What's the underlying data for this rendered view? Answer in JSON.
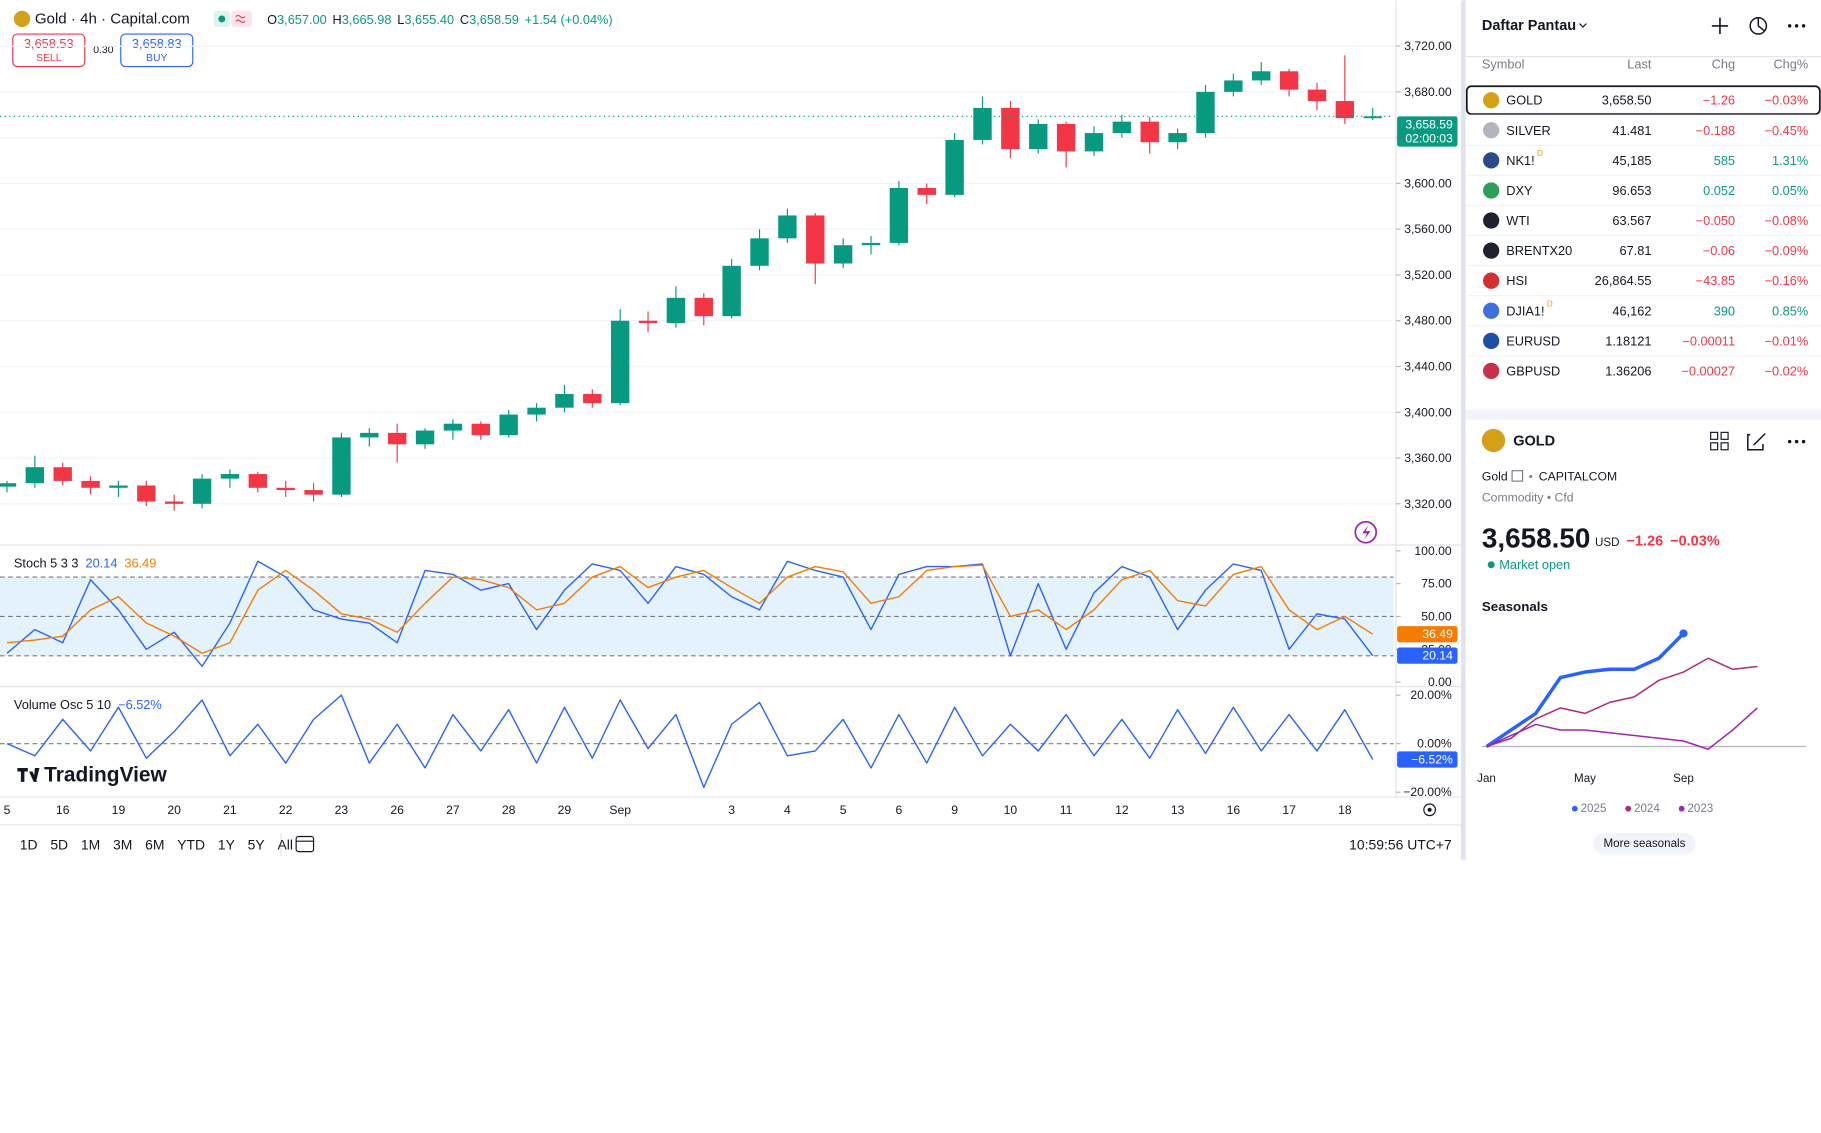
{
  "header": {
    "ohlc": [
      {
        "key": "O",
        "value": "3,657.00"
      },
      {
        "key": "H",
        "value": "3,665.98"
      },
      {
        "key": "L",
        "value": "3,655.40"
      },
      {
        "key": "C",
        "value": "3,658.59"
      }
    ],
    "change": "+1.54 (+0.04%)",
    "sell": {
      "price": "3,658.53",
      "label": "SELL"
    },
    "spread": "0.30",
    "buy": {
      "price": "3,658.83",
      "label": "BUY"
    }
  },
  "chart_data": [
    {
      "type": "candlestick",
      "title": "Gold · 4h · Capital.com",
      "categories": [
        "5",
        null,
        "16",
        null,
        "19",
        null,
        "20",
        null,
        "21",
        null,
        "22",
        null,
        "23",
        null,
        "26",
        null,
        "27",
        null,
        "28",
        null,
        "29",
        null,
        "Sep",
        null,
        null,
        null,
        "3",
        null,
        "4",
        null,
        "5",
        null,
        "6",
        null,
        "9",
        null,
        "10",
        null,
        "11",
        null,
        "12",
        null,
        "13",
        null,
        "16",
        null,
        "17",
        null,
        "18",
        null
      ],
      "ohlc": [
        [
          3335,
          3340,
          3330,
          3338
        ],
        [
          3338,
          3362,
          3334,
          3352
        ],
        [
          3352,
          3356,
          3336,
          3340
        ],
        [
          3340,
          3344,
          3328,
          3334
        ],
        [
          3334,
          3340,
          3326,
          3336
        ],
        [
          3336,
          3340,
          3318,
          3322
        ],
        [
          3322,
          3328,
          3314,
          3320
        ],
        [
          3320,
          3346,
          3316,
          3342
        ],
        [
          3342,
          3350,
          3334,
          3346
        ],
        [
          3346,
          3348,
          3330,
          3334
        ],
        [
          3334,
          3340,
          3326,
          3332
        ],
        [
          3332,
          3338,
          3322,
          3328
        ],
        [
          3328,
          3382,
          3326,
          3378
        ],
        [
          3378,
          3386,
          3370,
          3382
        ],
        [
          3382,
          3390,
          3356,
          3372
        ],
        [
          3372,
          3386,
          3368,
          3384
        ],
        [
          3384,
          3394,
          3376,
          3390
        ],
        [
          3390,
          3392,
          3376,
          3380
        ],
        [
          3380,
          3402,
          3378,
          3398
        ],
        [
          3398,
          3408,
          3392,
          3404
        ],
        [
          3404,
          3424,
          3400,
          3416
        ],
        [
          3416,
          3420,
          3404,
          3408
        ],
        [
          3408,
          3490,
          3406,
          3480
        ],
        [
          3480,
          3488,
          3470,
          3478
        ],
        [
          3478,
          3510,
          3474,
          3500
        ],
        [
          3500,
          3504,
          3476,
          3484
        ],
        [
          3484,
          3534,
          3482,
          3528
        ],
        [
          3528,
          3560,
          3524,
          3552
        ],
        [
          3552,
          3578,
          3548,
          3572
        ],
        [
          3572,
          3574,
          3512,
          3530
        ],
        [
          3530,
          3552,
          3526,
          3546
        ],
        [
          3546,
          3554,
          3538,
          3548
        ],
        [
          3548,
          3602,
          3546,
          3596
        ],
        [
          3596,
          3600,
          3582,
          3590
        ],
        [
          3590,
          3644,
          3588,
          3638
        ],
        [
          3638,
          3676,
          3634,
          3666
        ],
        [
          3666,
          3672,
          3622,
          3630
        ],
        [
          3630,
          3656,
          3626,
          3652
        ],
        [
          3652,
          3654,
          3614,
          3628
        ],
        [
          3628,
          3650,
          3624,
          3644
        ],
        [
          3644,
          3660,
          3640,
          3654
        ],
        [
          3654,
          3658,
          3626,
          3636
        ],
        [
          3636,
          3648,
          3630,
          3644
        ],
        [
          3644,
          3686,
          3640,
          3680
        ],
        [
          3680,
          3696,
          3676,
          3690
        ],
        [
          3690,
          3706,
          3686,
          3698
        ],
        [
          3698,
          3700,
          3676,
          3682
        ],
        [
          3682,
          3688,
          3664,
          3672
        ],
        [
          3672,
          3712,
          3652,
          3657
        ],
        [
          3657,
          3665.98,
          3655.4,
          3658.59
        ]
      ],
      "up_color": "#089981",
      "down_color": "#f23645",
      "ylim": [
        3285,
        3760
      ],
      "yticks": [
        {
          "value": 3320,
          "label": "3,320.00"
        },
        {
          "value": 3360,
          "label": "3,360.00"
        },
        {
          "value": 3400,
          "label": "3,400.00"
        },
        {
          "value": 3440,
          "label": "3,440.00"
        },
        {
          "value": 3480,
          "label": "3,480.00"
        },
        {
          "value": 3520,
          "label": "3,520.00"
        },
        {
          "value": 3560,
          "label": "3,560.00"
        },
        {
          "value": 3600,
          "label": "3,600.00"
        },
        {
          "value": 3640,
          "label": "3,640.00"
        },
        {
          "value": 3680,
          "label": "3,680.00"
        },
        {
          "value": 3720,
          "label": "3,720.00"
        }
      ],
      "grid": true,
      "last_label": "3,658.59",
      "countdown": "02:00:03"
    },
    {
      "type": "line",
      "title": "Stoch 5 3 3",
      "series": [
        {
          "color": "#2962ff",
          "values": [
            22,
            40,
            30,
            78,
            55,
            25,
            38,
            12,
            45,
            92,
            80,
            55,
            48,
            45,
            30,
            85,
            82,
            70,
            75,
            40,
            70,
            90,
            85,
            60,
            88,
            82,
            65,
            55,
            92,
            85,
            80,
            40,
            82,
            88,
            88,
            90,
            20,
            75,
            25,
            68,
            88,
            80,
            40,
            70,
            90,
            85,
            25,
            52,
            48,
            20.14
          ],
          "last_label": "20.14"
        },
        {
          "color": "#f57c00",
          "values": [
            30,
            32,
            35,
            55,
            65,
            45,
            35,
            22,
            30,
            70,
            85,
            70,
            52,
            48,
            38,
            60,
            80,
            78,
            72,
            55,
            60,
            80,
            88,
            72,
            80,
            85,
            72,
            60,
            80,
            88,
            84,
            60,
            65,
            85,
            88,
            89,
            50,
            55,
            40,
            55,
            78,
            85,
            62,
            58,
            82,
            88,
            55,
            40,
            50,
            36.49
          ],
          "last_label": "36.49"
        }
      ],
      "ylim": [
        -2.6,
        103.5
      ],
      "yticks": [
        {
          "value": 0,
          "label": "0.00"
        },
        {
          "value": 25,
          "label": "25.00"
        },
        {
          "value": 50,
          "label": "50.00"
        },
        {
          "value": 75,
          "label": "75.00"
        },
        {
          "value": 100,
          "label": "100.00"
        }
      ],
      "hlines": [
        20,
        50,
        80
      ],
      "band_color": "#e3f2fd"
    },
    {
      "type": "line",
      "title": "Volume Osc 5 10",
      "series": [
        {
          "color": "#2962ff",
          "values": [
            0,
            -5,
            10,
            -3,
            15,
            -6,
            5,
            18,
            -5,
            8,
            -8,
            10,
            20,
            -8,
            8,
            -10,
            12,
            -3,
            14,
            -8,
            15,
            -6,
            18,
            -2,
            12,
            -18,
            8,
            17,
            -5,
            -3,
            10,
            -10,
            12,
            -8,
            15,
            -5,
            8,
            -3,
            12,
            -5,
            10,
            -6,
            14,
            -4,
            15,
            -3,
            12,
            -3,
            14,
            -6.52
          ],
          "last_label": "−6.52%"
        }
      ],
      "ylim": [
        -22,
        23
      ],
      "yticks": [
        {
          "value": 20,
          "label": "20.00%"
        },
        {
          "value": 0,
          "label": "0.00%"
        },
        {
          "value": -20,
          "label": "−20.00%"
        }
      ],
      "hlines": [
        0
      ]
    },
    {
      "type": "line",
      "title": "Seasonals",
      "categories": [
        "Jan",
        null,
        null,
        null,
        "May",
        null,
        null,
        null,
        "Sep",
        null,
        null,
        null
      ],
      "series": [
        {
          "name": "2025",
          "color": "#2962ff",
          "line_width": 3,
          "values": [
            0,
            6,
            12,
            25,
            27,
            28,
            28,
            32,
            41,
            null,
            null,
            null
          ]
        },
        {
          "name": "2024",
          "color": "#b02a7a",
          "line_width": 1.3,
          "values": [
            0,
            3,
            10,
            14,
            12,
            16,
            18,
            24,
            27,
            32,
            28,
            29
          ]
        },
        {
          "name": "2023",
          "color": "#9c27b0",
          "line_width": 1.3,
          "values": [
            0,
            4,
            8,
            6,
            6,
            5,
            4,
            3,
            2,
            -1,
            6,
            14
          ]
        }
      ],
      "ylim": [
        -4,
        44
      ],
      "hlines": [
        0
      ]
    }
  ],
  "brand": "TradingView",
  "ranges": [
    "1D",
    "5D",
    "1M",
    "3M",
    "6M",
    "YTD",
    "1Y",
    "5Y",
    "All"
  ],
  "clock": "10:59:56 UTC+7",
  "watchlist": {
    "title": "Daftar Pantau",
    "columns": [
      "Symbol",
      "Last",
      "Chg",
      "Chg%"
    ],
    "rows": [
      {
        "symbol": "GOLD",
        "last": "3,658.50",
        "chg": "−1.26",
        "chg_pct": "−0.03%",
        "up": false,
        "icon_color": "#d4a017",
        "selected": true
      },
      {
        "symbol": "SILVER",
        "last": "41.481",
        "chg": "−0.188",
        "chg_pct": "−0.45%",
        "up": false,
        "icon_color": "#b2b5be"
      },
      {
        "symbol": "NK1!",
        "flag": "D",
        "last": "45,185",
        "chg": "585",
        "chg_pct": "1.31%",
        "up": true,
        "icon_color": "#2a4a8c"
      },
      {
        "symbol": "DXY",
        "last": "96.653",
        "chg": "0.052",
        "chg_pct": "0.05%",
        "up": true,
        "icon_color": "#2e9e5b"
      },
      {
        "symbol": "WTI",
        "last": "63.567",
        "chg": "−0.050",
        "chg_pct": "−0.08%",
        "up": false,
        "icon_color": "#1e222d"
      },
      {
        "symbol": "BRENTX20",
        "last": "67.81",
        "chg": "−0.06",
        "chg_pct": "−0.09%",
        "up": false,
        "icon_color": "#1e222d"
      },
      {
        "symbol": "HSI",
        "last": "26,864.55",
        "chg": "−43.85",
        "chg_pct": "−0.16%",
        "up": false,
        "icon_color": "#d32f2f"
      },
      {
        "symbol": "DJIA1!",
        "flag": "D",
        "last": "46,162",
        "chg": "390",
        "chg_pct": "0.85%",
        "up": true,
        "icon_color": "#3f6fd8"
      },
      {
        "symbol": "EURUSD",
        "last": "1.18121",
        "chg": "−0.00011",
        "chg_pct": "−0.01%",
        "up": false,
        "icon_color": "#1e4fa3"
      },
      {
        "symbol": "GBPUSD",
        "last": "1.36206",
        "chg": "−0.00027",
        "chg_pct": "−0.02%",
        "up": false,
        "icon_color": "#c8304a"
      }
    ]
  },
  "detail": {
    "symbol": "GOLD",
    "name": "Gold",
    "exchange": "CAPITALCOM",
    "category": "Commodity • Cfd",
    "price": "3,658.50",
    "currency": "USD",
    "chg": "−1.26",
    "chg_pct": "−0.03%",
    "status": "Market open",
    "more": "More seasonals"
  }
}
